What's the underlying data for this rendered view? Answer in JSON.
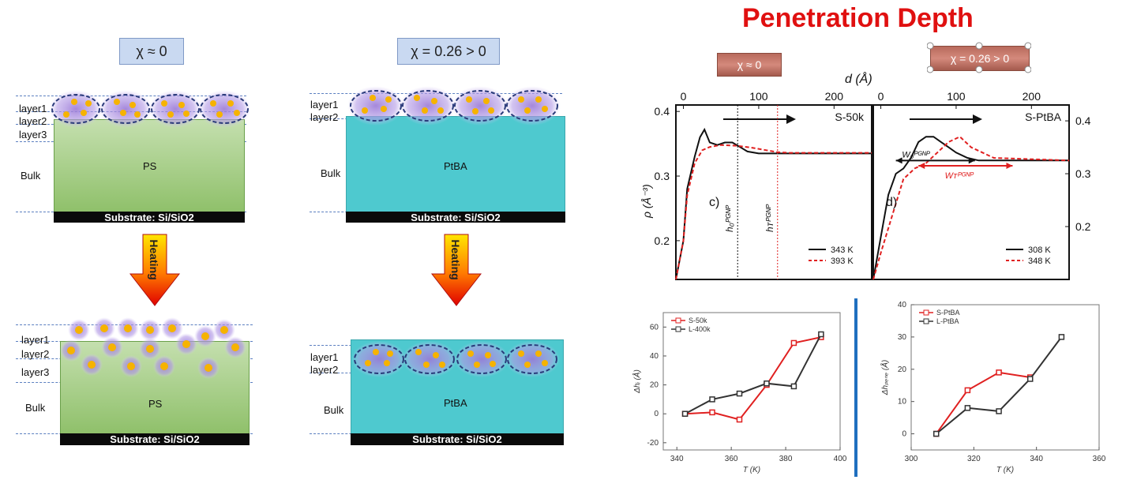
{
  "schematic": {
    "left": {
      "chi": "χ ≈ 0",
      "before": {
        "layers": [
          "layer1",
          "layer2",
          "layer3"
        ],
        "bulk": "Bulk",
        "film": "PS",
        "substrate": "Substrate: Si/SiO2"
      },
      "heating": "Heating",
      "after": {
        "layers": [
          "layer1",
          "layer2",
          "layer3"
        ],
        "bulk": "Bulk",
        "film": "PS",
        "substrate": "Substrate: Si/SiO2"
      }
    },
    "right": {
      "chi": "χ = 0.26 > 0",
      "before": {
        "layers": [
          "layer1",
          "layer2"
        ],
        "bulk": "Bulk",
        "film": "PtBA",
        "substrate": "Substrate: Si/SiO2"
      },
      "heating": "Heating",
      "after": {
        "layers": [
          "layer1",
          "layer2"
        ],
        "bulk": "Bulk",
        "film": "PtBA",
        "substrate": "Substrate: Si/SiO2"
      }
    }
  },
  "title": "Penetration Depth",
  "tags": {
    "left": "χ ≈ 0",
    "right": "χ = 0.26 > 0"
  },
  "top_axis_label": "d (Å)",
  "colors": {
    "title": "#e01010",
    "red": "#e02020",
    "black": "#111111",
    "blue_divider": "#1f6fbf"
  },
  "chart_data": [
    {
      "type": "line",
      "panel_label": "c)",
      "title": "S-50k",
      "xlabel": "d (Å)",
      "ylabel": "ρ (Å⁻³)",
      "xlim": [
        -10,
        250
      ],
      "ylim": [
        0.14,
        0.41
      ],
      "x_ticks": [
        0,
        100,
        200
      ],
      "y_ticks": [
        0.2,
        0.3,
        0.4
      ],
      "markers": [
        "h₀ᴾᴳᴺᴾ",
        "hᴛᴾᴳᴺᴾ"
      ],
      "series": [
        {
          "name": "343 K",
          "style": "solid",
          "x": [
            -10,
            0,
            5,
            15,
            22,
            28,
            35,
            45,
            55,
            65,
            75,
            85,
            100,
            120,
            160,
            250
          ],
          "y": [
            0.14,
            0.2,
            0.28,
            0.33,
            0.36,
            0.372,
            0.352,
            0.348,
            0.352,
            0.352,
            0.345,
            0.338,
            0.335,
            0.335,
            0.335,
            0.335
          ]
        },
        {
          "name": "393 K",
          "style": "dashed",
          "x": [
            -10,
            0,
            5,
            15,
            25,
            35,
            50,
            70,
            90,
            110,
            125,
            140,
            250
          ],
          "y": [
            0.14,
            0.2,
            0.27,
            0.32,
            0.34,
            0.345,
            0.348,
            0.347,
            0.344,
            0.34,
            0.337,
            0.336,
            0.336
          ]
        }
      ]
    },
    {
      "type": "line",
      "panel_label": "d)",
      "title": "S-PtBA",
      "xlabel": "d (Å)",
      "ylabel": "",
      "xlim": [
        -10,
        250
      ],
      "ylim": [
        0.1,
        0.43
      ],
      "x_ticks": [
        0,
        100,
        200
      ],
      "y_ticks": [
        0.2,
        0.3,
        0.4
      ],
      "markers": [
        "W₀ᴾᴳᴺᴾ",
        "Wᴛᴾᴳᴺᴾ"
      ],
      "series": [
        {
          "name": "308 K",
          "style": "solid",
          "x": [
            -10,
            0,
            10,
            20,
            30,
            40,
            50,
            60,
            70,
            80,
            90,
            100,
            115,
            130,
            250
          ],
          "y": [
            0.1,
            0.18,
            0.26,
            0.3,
            0.31,
            0.33,
            0.36,
            0.37,
            0.37,
            0.36,
            0.35,
            0.34,
            0.33,
            0.325,
            0.325
          ]
        },
        {
          "name": "348 K",
          "style": "dashed",
          "x": [
            -10,
            0,
            15,
            30,
            45,
            60,
            75,
            90,
            105,
            120,
            135,
            150,
            250
          ],
          "y": [
            0.1,
            0.15,
            0.22,
            0.29,
            0.31,
            0.32,
            0.34,
            0.36,
            0.37,
            0.35,
            0.34,
            0.33,
            0.325
          ]
        }
      ]
    },
    {
      "type": "line",
      "title": "",
      "xlabel": "T (K)",
      "ylabel": "Δhᵢ (Å)",
      "xlim": [
        335,
        400
      ],
      "ylim": [
        -25,
        70
      ],
      "x_ticks": [
        340,
        360,
        380,
        400
      ],
      "y_ticks": [
        -20,
        0,
        20,
        40,
        60
      ],
      "series": [
        {
          "name": "S-50k",
          "color": "#e02020",
          "x": [
            343,
            353,
            363,
            373,
            383,
            393
          ],
          "y": [
            0,
            1,
            -4,
            20,
            49,
            53
          ]
        },
        {
          "name": "L-400k",
          "color": "#333333",
          "x": [
            343,
            353,
            363,
            373,
            383,
            393
          ],
          "y": [
            0,
            10,
            14,
            21,
            19,
            55
          ]
        }
      ]
    },
    {
      "type": "line",
      "title": "",
      "xlabel": "T (K)",
      "ylabel": "Δhₚₑₙₑ (Å)",
      "xlim": [
        300,
        360
      ],
      "ylim": [
        -5,
        40
      ],
      "x_ticks": [
        300,
        320,
        340,
        360
      ],
      "y_ticks": [
        0,
        10,
        20,
        30,
        40
      ],
      "series": [
        {
          "name": "S-PtBA",
          "color": "#e02020",
          "x": [
            308,
            318,
            328,
            338
          ],
          "y": [
            0,
            13.5,
            19,
            17.5
          ]
        },
        {
          "name": "L-PtBA",
          "color": "#333333",
          "x": [
            308,
            318,
            328,
            338,
            348
          ],
          "y": [
            0,
            8,
            7,
            17,
            30
          ]
        }
      ]
    }
  ]
}
